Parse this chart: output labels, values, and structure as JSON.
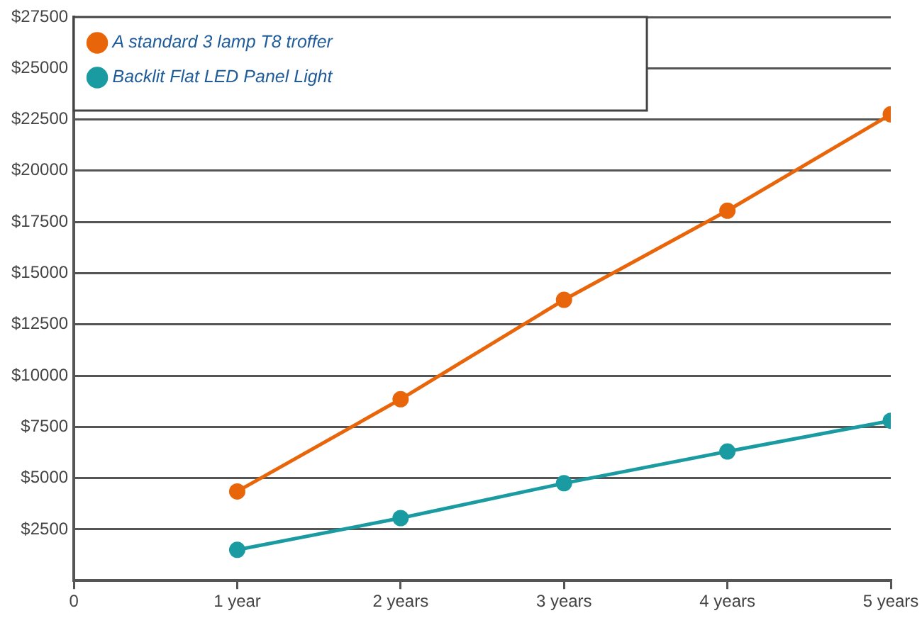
{
  "chart_data": {
    "type": "line",
    "x": [
      1,
      2,
      3,
      4,
      5
    ],
    "series": [
      {
        "name": "A standard 3 lamp T8 troffer",
        "color": "#e8650a",
        "values": [
          4350,
          8850,
          13700,
          18050,
          22750
        ]
      },
      {
        "name": "Backlit Flat LED Panel Light",
        "color": "#1a9ba1",
        "values": [
          1500,
          3050,
          4750,
          6300,
          7800
        ]
      }
    ],
    "xlim": [
      0,
      5
    ],
    "xticks": [
      0,
      {
        "value": 1,
        "label": "1 year"
      },
      {
        "value": 2,
        "label": "2 years"
      },
      {
        "value": 3,
        "label": "3 years"
      },
      {
        "value": 4,
        "label": "4 years"
      },
      {
        "value": 5,
        "label": "5 years"
      }
    ],
    "ylim": [
      0,
      27500
    ],
    "yticks": [
      {
        "value": 2500,
        "label": "$2500"
      },
      {
        "value": 5000,
        "label": "$5000"
      },
      {
        "value": 7500,
        "label": "$7500"
      },
      {
        "value": 10000,
        "label": "$10000"
      },
      {
        "value": 12500,
        "label": "$12500"
      },
      {
        "value": 15000,
        "label": "$15000"
      },
      {
        "value": 17500,
        "label": "$17500"
      },
      {
        "value": 20000,
        "label": "$20000"
      },
      {
        "value": 22500,
        "label": "$22500"
      },
      {
        "value": 25000,
        "label": "$25000"
      },
      {
        "value": 27500,
        "label": "$27500"
      }
    ],
    "grid": "y",
    "legend": "top left",
    "marker": "circle",
    "line_style": "solid"
  }
}
